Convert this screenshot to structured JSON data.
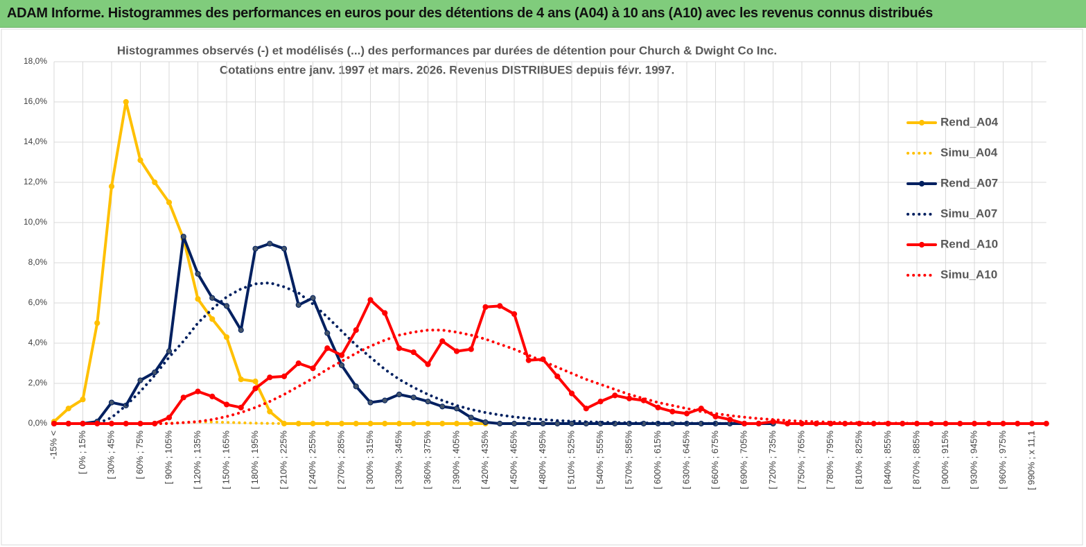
{
  "header": {
    "title": "ADAM Informe. Histogrammes des performances en euros pour des détentions de 4 ans (A04) à 10 ans (A10) avec les revenus connus distribués"
  },
  "chart_data": {
    "type": "line",
    "title": "Histogrammes observés (-) et modélisés (...) des performances par durées de détention pour Church & Dwight Co Inc.",
    "subtitle": "Cotations entre janv. 1997 et mars. 2026.  Revenus DISTRIBUES depuis févr. 1997.",
    "categories": [
      "-15% <",
      null,
      "[ 0% ; 15%",
      null,
      "[ 30% ; 45%",
      null,
      "[ 60% ; 75%",
      null,
      "[ 90% ; 105%",
      null,
      "[ 120% ; 135%",
      null,
      "[ 150% ; 165%",
      null,
      "[ 180% ; 195%",
      null,
      "[ 210% ; 225%",
      null,
      "[ 240% ; 255%",
      null,
      "[ 270% ; 285%",
      null,
      "[ 300% ; 315%",
      null,
      "[ 330% ; 345%",
      null,
      "[ 360% ; 375%",
      null,
      "[ 390% ; 405%",
      null,
      "[ 420% ; 435%",
      null,
      "[ 450% ; 465%",
      null,
      "[ 480% ; 495%",
      null,
      "[ 510% ; 525%",
      null,
      "[ 540% ; 555%",
      null,
      "[ 570% ; 585%",
      null,
      "[ 600% ; 615%",
      null,
      "[ 630% ; 645%",
      null,
      "[ 660% ; 675%",
      null,
      "[ 690% ; 705%",
      null,
      "[ 720% ; 735%",
      null,
      "[ 750% ; 765%",
      null,
      "[ 780% ; 795%",
      null,
      "[ 810% ; 825%",
      null,
      "[ 840% ; 855%",
      null,
      "[ 870% ; 885%",
      null,
      "[ 900% ; 915%",
      null,
      "[ 930% ; 945%",
      null,
      "[ 960% ; 975%",
      null,
      "[ 990% ; x 11,1",
      null
    ],
    "ylim": [
      0,
      18
    ],
    "yticks": [
      {
        "value": 0,
        "label": "0,0%"
      },
      {
        "value": 2,
        "label": "2,0%"
      },
      {
        "value": 4,
        "label": "4,0%"
      },
      {
        "value": 6,
        "label": "6,0%"
      },
      {
        "value": 8,
        "label": "8,0%"
      },
      {
        "value": 10,
        "label": "10,0%"
      },
      {
        "value": 12,
        "label": "12,0%"
      },
      {
        "value": 14,
        "label": "14,0%"
      },
      {
        "value": 16,
        "label": "16,0%"
      },
      {
        "value": 18,
        "label": "18,0%"
      }
    ],
    "grid": true,
    "legend": "right",
    "series": [
      {
        "name": "Rend_A04",
        "color": "#ffc000",
        "line_style": "solid",
        "markers": true,
        "values": [
          0.1,
          0.75,
          1.2,
          5.0,
          11.8,
          16.0,
          13.1,
          12.0,
          11.0,
          9.2,
          6.2,
          5.2,
          4.3,
          2.2,
          2.1,
          0.6,
          0,
          0,
          0,
          0,
          0,
          0,
          0,
          0,
          0,
          0,
          0,
          0,
          0,
          0,
          0,
          null,
          null,
          null,
          null,
          null,
          null,
          null,
          null,
          null,
          null,
          null,
          null,
          null,
          null,
          null,
          null,
          null,
          null,
          null,
          null,
          null,
          null,
          null,
          null,
          null,
          null,
          null,
          null,
          null,
          null,
          null,
          null,
          null,
          null,
          null,
          null,
          null,
          null,
          null
        ]
      },
      {
        "name": "Simu_A04",
        "color": "#ffc000",
        "line_style": "dotted",
        "markers": false,
        "values": [
          0,
          0,
          0,
          0,
          0,
          0,
          0,
          0,
          0.02,
          0.05,
          0.08,
          0.08,
          0.06,
          0.04,
          0.02,
          0.01,
          0,
          null,
          null,
          null,
          null,
          null,
          null,
          null,
          null,
          null,
          null,
          null,
          null,
          null,
          null,
          null,
          null,
          null,
          null,
          null,
          null,
          null,
          null,
          null,
          null,
          null,
          null,
          null,
          null,
          null,
          null,
          null,
          null,
          null,
          null,
          null,
          null,
          null,
          null,
          null,
          null,
          null,
          null,
          null,
          null,
          null,
          null,
          null,
          null,
          null,
          null,
          null,
          null,
          null
        ]
      },
      {
        "name": "Rend_A07",
        "color": "#002060",
        "line_style": "solid",
        "markers": true,
        "values": [
          0,
          0,
          0,
          0.1,
          1.05,
          0.9,
          2.15,
          2.55,
          3.6,
          9.3,
          7.45,
          6.25,
          5.85,
          4.65,
          8.7,
          8.95,
          8.7,
          5.9,
          6.25,
          4.5,
          2.9,
          1.85,
          1.05,
          1.15,
          1.45,
          1.3,
          1.1,
          0.85,
          0.75,
          0.3,
          0.07,
          0,
          0,
          0,
          0,
          0,
          0,
          0,
          0,
          0,
          0,
          0,
          0,
          0,
          0,
          0,
          0,
          0,
          0,
          0,
          0,
          null,
          null,
          null,
          null,
          null,
          null,
          null,
          null,
          null,
          null,
          null,
          null,
          null,
          null,
          null,
          null,
          null,
          null,
          null
        ]
      },
      {
        "name": "Simu_A07",
        "color": "#002060",
        "line_style": "dotted",
        "markers": false,
        "values": [
          0,
          0,
          0,
          0,
          0.3,
          0.9,
          1.6,
          2.4,
          3.3,
          4.1,
          5.0,
          5.7,
          6.3,
          6.7,
          6.95,
          7.0,
          6.8,
          6.5,
          5.95,
          5.3,
          4.6,
          3.9,
          3.3,
          2.7,
          2.2,
          1.8,
          1.45,
          1.15,
          0.9,
          0.7,
          0.55,
          0.43,
          0.33,
          0.26,
          0.2,
          0.15,
          0.12,
          0.09,
          0.07,
          0.05,
          0.04,
          0.03,
          0.03,
          0.02,
          0.02,
          0.01,
          0.01,
          0.01,
          0,
          0,
          0,
          null,
          null,
          null,
          null,
          null,
          null,
          null,
          null,
          null,
          null,
          null,
          null,
          null,
          null,
          null,
          null,
          null,
          null,
          null
        ]
      },
      {
        "name": "Rend_A10",
        "color": "#ff0000",
        "line_style": "solid",
        "markers": true,
        "values": [
          0,
          0,
          0,
          0,
          0,
          0,
          0,
          0,
          0.3,
          1.3,
          1.6,
          1.35,
          0.95,
          0.8,
          1.75,
          2.3,
          2.35,
          3.0,
          2.75,
          3.75,
          3.4,
          4.65,
          6.15,
          5.5,
          3.75,
          3.55,
          2.95,
          4.1,
          3.6,
          3.7,
          5.8,
          5.85,
          5.45,
          3.15,
          3.2,
          2.35,
          1.5,
          0.75,
          1.1,
          1.4,
          1.25,
          1.15,
          0.8,
          0.6,
          0.5,
          0.75,
          0.35,
          0.2,
          0,
          0,
          0.1,
          0,
          0,
          0,
          0,
          0,
          0,
          0,
          0,
          0,
          0,
          0,
          0,
          0,
          0,
          0,
          0,
          0,
          0,
          0
        ]
      },
      {
        "name": "Simu_A10",
        "color": "#ff0000",
        "line_style": "dotted",
        "markers": false,
        "values": [
          0,
          0,
          0,
          0,
          0,
          0,
          0,
          0,
          0,
          0.05,
          0.1,
          0.2,
          0.35,
          0.55,
          0.8,
          1.1,
          1.45,
          1.85,
          2.25,
          2.7,
          3.1,
          3.5,
          3.85,
          4.15,
          4.4,
          4.55,
          4.65,
          4.65,
          4.55,
          4.4,
          4.2,
          3.95,
          3.7,
          3.4,
          3.1,
          2.8,
          2.5,
          2.2,
          1.95,
          1.7,
          1.45,
          1.25,
          1.05,
          0.9,
          0.75,
          0.6,
          0.5,
          0.4,
          0.32,
          0.25,
          0.2,
          0.15,
          0.12,
          0.09,
          0.07,
          0.05,
          0.04,
          0.03,
          0.02,
          0.02,
          0.01,
          0,
          0,
          0,
          0,
          0,
          0,
          0,
          0,
          0
        ]
      }
    ]
  }
}
